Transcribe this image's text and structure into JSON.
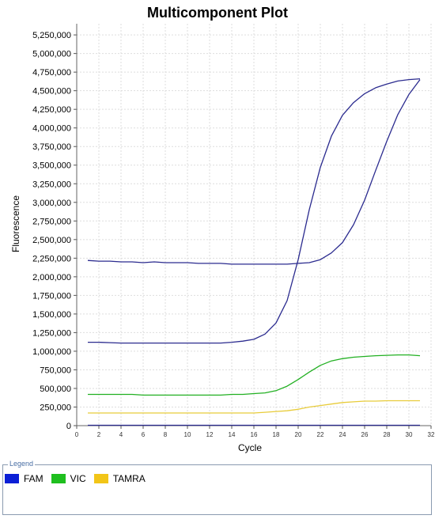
{
  "chart_data": {
    "type": "line",
    "title": "Multicomponent Plot",
    "xlabel": "Cycle",
    "ylabel": "Fluorescence",
    "xlim": [
      0,
      32
    ],
    "ylim": [
      0,
      5400000
    ],
    "grid": true,
    "x_ticks": [
      0,
      2,
      4,
      6,
      8,
      10,
      12,
      14,
      16,
      18,
      20,
      22,
      24,
      26,
      28,
      30,
      32
    ],
    "y_ticks": [
      0,
      250000,
      500000,
      750000,
      1000000,
      1250000,
      1500000,
      1750000,
      2000000,
      2250000,
      2500000,
      2750000,
      3000000,
      3250000,
      3500000,
      3750000,
      4000000,
      4250000,
      4500000,
      4750000,
      5000000,
      5250000
    ],
    "y_tick_labels": [
      "0",
      "250,000",
      "500,000",
      "750,000",
      "1,000,000",
      "1,250,000",
      "1,500,000",
      "1,750,000",
      "2,000,000",
      "2,250,000",
      "2,500,000",
      "2,750,000",
      "3,000,000",
      "3,250,000",
      "3,500,000",
      "3,750,000",
      "4,000,000",
      "4,250,000",
      "4,500,000",
      "4,750,000",
      "5,000,000",
      "5,250,000"
    ],
    "x": [
      1,
      2,
      3,
      4,
      5,
      6,
      7,
      8,
      9,
      10,
      11,
      12,
      13,
      14,
      15,
      16,
      17,
      18,
      19,
      20,
      21,
      22,
      23,
      24,
      25,
      26,
      27,
      28,
      29,
      30,
      31
    ],
    "series": [
      {
        "color": "#2b2b8f",
        "values": [
          1120000,
          1120000,
          1115000,
          1110000,
          1110000,
          1110000,
          1110000,
          1110000,
          1110000,
          1110000,
          1110000,
          1110000,
          1110000,
          1120000,
          1135000,
          1160000,
          1230000,
          1380000,
          1680000,
          2230000,
          2900000,
          3470000,
          3890000,
          4170000,
          4340000,
          4460000,
          4540000,
          4590000,
          4630000,
          4650000,
          4660000
        ]
      },
      {
        "color": "#2b2b8f",
        "values": [
          2220000,
          2210000,
          2210000,
          2200000,
          2200000,
          2190000,
          2200000,
          2190000,
          2190000,
          2190000,
          2180000,
          2180000,
          2180000,
          2170000,
          2170000,
          2170000,
          2170000,
          2170000,
          2170000,
          2180000,
          2190000,
          2230000,
          2320000,
          2460000,
          2700000,
          3030000,
          3430000,
          3820000,
          4180000,
          4450000,
          4650000
        ]
      },
      {
        "color": "#22b022",
        "values": [
          420000,
          420000,
          420000,
          420000,
          420000,
          410000,
          410000,
          410000,
          410000,
          410000,
          410000,
          410000,
          410000,
          420000,
          420000,
          430000,
          440000,
          470000,
          530000,
          620000,
          720000,
          810000,
          870000,
          900000,
          920000,
          930000,
          940000,
          945000,
          950000,
          950000,
          940000
        ]
      },
      {
        "color": "#e8cc3a",
        "values": [
          170000,
          170000,
          170000,
          170000,
          170000,
          170000,
          170000,
          170000,
          170000,
          170000,
          170000,
          170000,
          170000,
          170000,
          170000,
          170000,
          180000,
          190000,
          200000,
          220000,
          250000,
          270000,
          290000,
          310000,
          320000,
          330000,
          330000,
          335000,
          335000,
          335000,
          335000
        ]
      },
      {
        "color": "#2b2b8f",
        "values": [
          5000,
          5000,
          5000,
          5000,
          5000,
          5000,
          5000,
          5000,
          5000,
          5000,
          5000,
          5000,
          5000,
          5000,
          5000,
          5000,
          5000,
          5000,
          5000,
          5000,
          5000,
          5000,
          5000,
          5000,
          5000,
          5000,
          5000,
          5000,
          5000,
          5000,
          5000
        ]
      }
    ]
  },
  "legend": {
    "title": "Legend",
    "items": [
      {
        "label": "FAM",
        "color": "#0b1fd6"
      },
      {
        "label": "VIC",
        "color": "#1fbf1f"
      },
      {
        "label": "TAMRA",
        "color": "#f2c518"
      }
    ]
  }
}
